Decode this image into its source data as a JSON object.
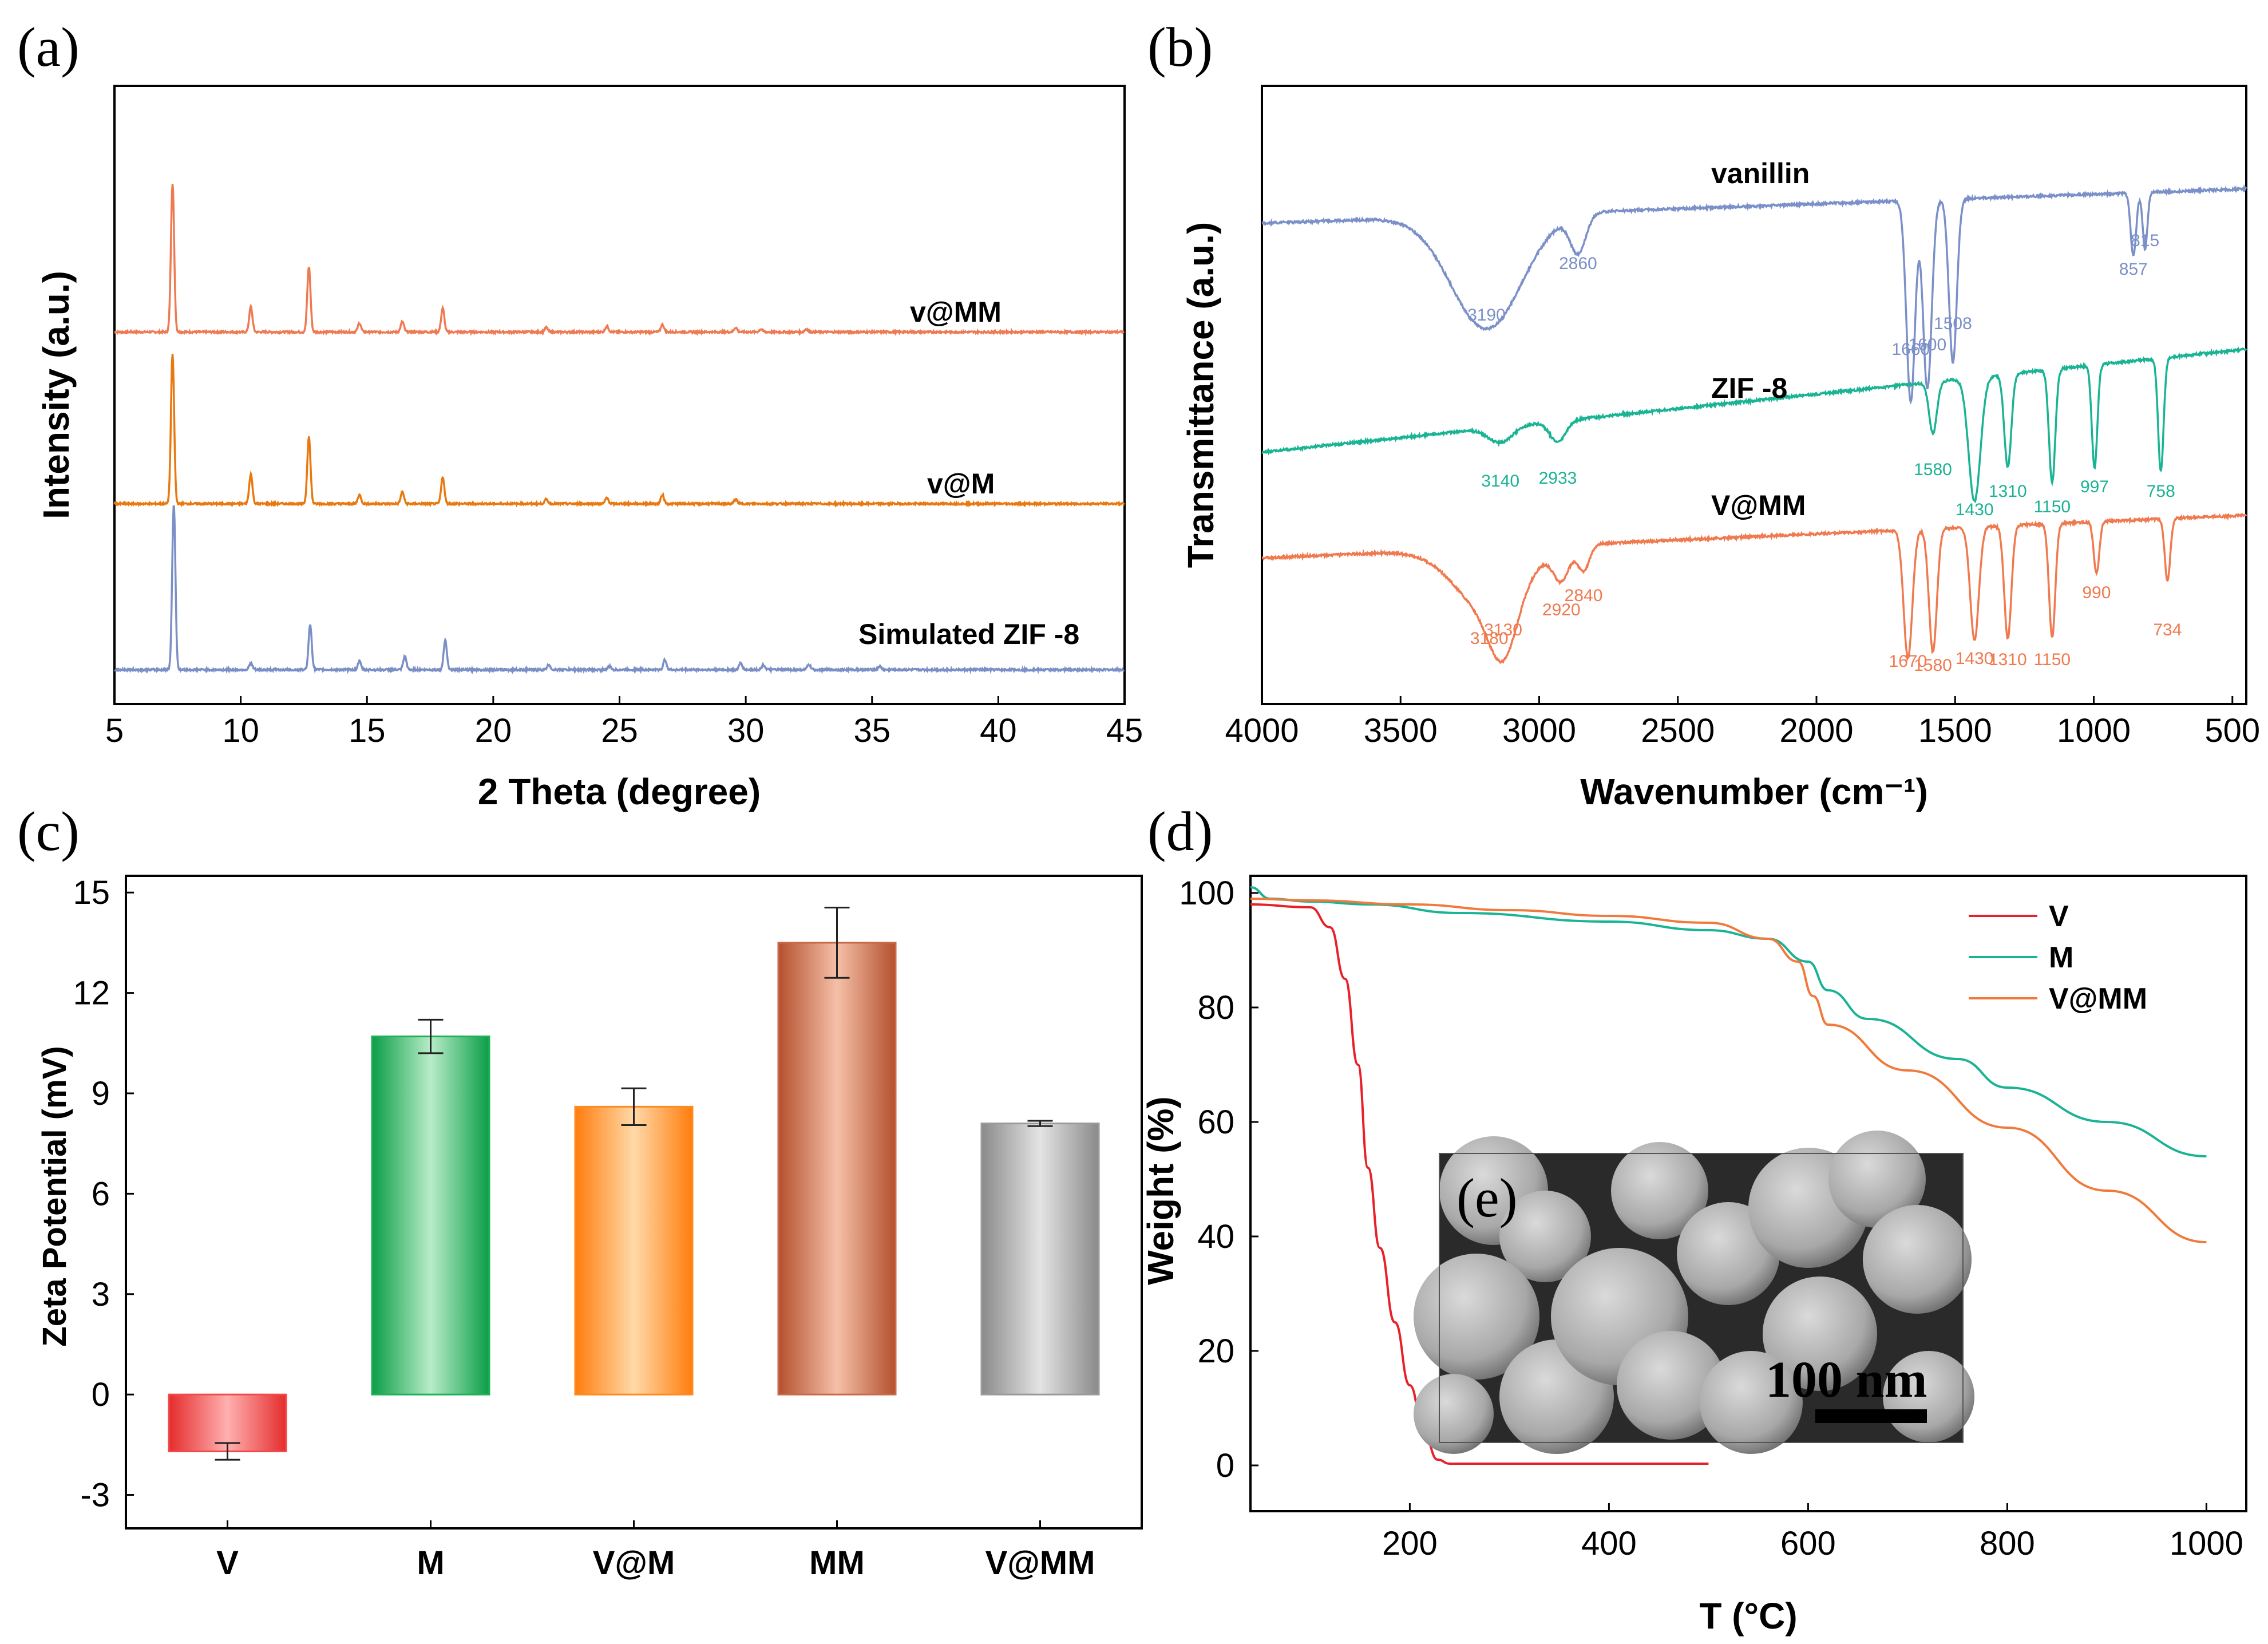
{
  "chart_data": [
    {
      "panel": "(a)",
      "type": "line",
      "xlabel": "2 Theta (degree)",
      "ylabel": "Intensity (a.u.)",
      "xlim": [
        5,
        45
      ],
      "xticks": [
        5,
        10,
        15,
        20,
        25,
        30,
        35,
        40,
        45
      ],
      "series": [
        {
          "name": "v@MM",
          "color": "#ee7a52",
          "peaks": [
            [
              7.3,
              100
            ],
            [
              10.4,
              17
            ],
            [
              12.7,
              44
            ],
            [
              14.7,
              6
            ],
            [
              16.4,
              7
            ],
            [
              18.0,
              16
            ],
            [
              22.1,
              3
            ],
            [
              24.5,
              4
            ],
            [
              26.7,
              5
            ],
            [
              29.6,
              3
            ],
            [
              30.6,
              2
            ],
            [
              32.4,
              2
            ]
          ]
        },
        {
          "name": "v@M",
          "color": "#e9780f",
          "peaks": [
            [
              7.3,
              100
            ],
            [
              10.4,
              20
            ],
            [
              12.7,
              45
            ],
            [
              14.7,
              6
            ],
            [
              16.4,
              8
            ],
            [
              18.0,
              18
            ],
            [
              22.1,
              3
            ],
            [
              24.5,
              4
            ],
            [
              26.7,
              6
            ],
            [
              29.6,
              3
            ]
          ]
        },
        {
          "name": "Simulated ZIF -8",
          "color": "#7b8fc6",
          "peaks": [
            [
              7.35,
              100
            ],
            [
              10.4,
              4
            ],
            [
              12.75,
              27
            ],
            [
              14.7,
              5
            ],
            [
              16.5,
              8
            ],
            [
              18.1,
              18
            ],
            [
              22.2,
              3
            ],
            [
              24.6,
              2
            ],
            [
              26.8,
              6
            ],
            [
              29.8,
              4
            ],
            [
              30.7,
              3
            ],
            [
              32.5,
              3
            ],
            [
              35.3,
              2
            ]
          ]
        }
      ]
    },
    {
      "panel": "(b)",
      "type": "line",
      "xlabel": "Wavenumber (cm⁻¹)",
      "ylabel": "Transmittance (a.u.)",
      "xlim": [
        4000,
        450
      ],
      "xticks": [
        4000,
        3500,
        3000,
        2500,
        2000,
        1500,
        1000,
        500
      ],
      "series": [
        {
          "name": "vanillin",
          "color": "#7b90c8",
          "bands": [
            {
              "wn": 3190,
              "label": "3190",
              "depth": 18,
              "width": 180
            },
            {
              "wn": 2860,
              "label": "2860",
              "depth": 6,
              "width": 40
            },
            {
              "wn": 1660,
              "label": "1660",
              "depth": 32,
              "width": 22
            },
            {
              "wn": 1600,
              "label": "1600",
              "depth": 30,
              "width": 22
            },
            {
              "wn": 1508,
              "label": "1508",
              "depth": 26,
              "width": 20
            },
            {
              "wn": 857,
              "label": "857",
              "depth": 10,
              "width": 14
            },
            {
              "wn": 815,
              "label": "815",
              "depth": 9,
              "width": 12
            }
          ]
        },
        {
          "name": "ZIF -8",
          "color": "#1ab394",
          "bands": [
            {
              "wn": 3140,
              "label": "3140",
              "depth": 3,
              "width": 60
            },
            {
              "wn": 2933,
              "label": "2933",
              "depth": 4,
              "width": 40
            },
            {
              "wn": 1580,
              "label": "1580",
              "depth": 10,
              "width": 20
            },
            {
              "wn": 1430,
              "label": "1430",
              "depth": 24,
              "width": 30
            },
            {
              "wn": 1310,
              "label": "1310",
              "depth": 18,
              "width": 18
            },
            {
              "wn": 1150,
              "label": "1150",
              "depth": 22,
              "width": 16
            },
            {
              "wn": 997,
              "label": "997",
              "depth": 20,
              "width": 14
            },
            {
              "wn": 758,
              "label": "758",
              "depth": 22,
              "width": 14
            }
          ]
        },
        {
          "name": "V@MM",
          "color": "#f07a4f",
          "bands": [
            {
              "wn": 3180,
              "label": "3180",
              "depth": 12,
              "width": 170
            },
            {
              "wn": 3130,
              "label": "3130",
              "depth": 11,
              "width": 70
            },
            {
              "wn": 2920,
              "label": "2920",
              "depth": 6,
              "width": 40
            },
            {
              "wn": 2840,
              "label": "2840",
              "depth": 5,
              "width": 30
            },
            {
              "wn": 1670,
              "label": "1670",
              "depth": 25,
              "width": 22
            },
            {
              "wn": 1580,
              "label": "1580",
              "depth": 24,
              "width": 20
            },
            {
              "wn": 1430,
              "label": "1430",
              "depth": 22,
              "width": 22
            },
            {
              "wn": 1310,
              "label": "1310",
              "depth": 22,
              "width": 18
            },
            {
              "wn": 1150,
              "label": "1150",
              "depth": 22,
              "width": 16
            },
            {
              "wn": 990,
              "label": "990",
              "depth": 10,
              "width": 14
            },
            {
              "wn": 734,
              "label": "734",
              "depth": 12,
              "width": 14
            }
          ]
        }
      ]
    },
    {
      "panel": "(c)",
      "type": "bar",
      "ylabel": "Zeta Potential (mV)",
      "ylim": [
        -4,
        15.5
      ],
      "yticks": [
        -3,
        0,
        3,
        6,
        9,
        12,
        15
      ],
      "categories": [
        "V",
        "M",
        "V@M",
        "MM",
        "V@MM"
      ],
      "values": [
        -1.7,
        10.7,
        8.6,
        13.5,
        8.1
      ],
      "errors": [
        0.25,
        0.5,
        0.55,
        1.05,
        0.08
      ],
      "colors": [
        "#f24a4a",
        "#1fb05a",
        "#ff8a1f",
        "#c86a4a",
        "#9a9a9a"
      ]
    },
    {
      "panel": "(d)",
      "type": "line",
      "xlabel": "T (°C)",
      "ylabel": "Weight (%)",
      "xlim": [
        40,
        1040
      ],
      "ylim": [
        -8,
        103
      ],
      "xticks": [
        200,
        400,
        600,
        800,
        1000
      ],
      "yticks": [
        0,
        20,
        40,
        60,
        80,
        100
      ],
      "series": [
        {
          "name": "V",
          "color": "#e8202a",
          "points": [
            [
              40,
              98
            ],
            [
              100,
              97.5
            ],
            [
              120,
              94
            ],
            [
              135,
              85
            ],
            [
              148,
              70
            ],
            [
              158,
              52
            ],
            [
              170,
              38
            ],
            [
              185,
              25
            ],
            [
              200,
              14
            ],
            [
              215,
              5
            ],
            [
              228,
              1
            ],
            [
              240,
              0.3
            ],
            [
              300,
              0.3
            ],
            [
              500,
              0.3
            ]
          ]
        },
        {
          "name": "M",
          "color": "#1ab394",
          "points": [
            [
              40,
              101
            ],
            [
              60,
              99
            ],
            [
              100,
              98.5
            ],
            [
              160,
              98
            ],
            [
              250,
              96.5
            ],
            [
              400,
              95
            ],
            [
              500,
              93.5
            ],
            [
              560,
              92
            ],
            [
              600,
              88
            ],
            [
              620,
              83
            ],
            [
              660,
              78
            ],
            [
              750,
              71
            ],
            [
              800,
              66
            ],
            [
              900,
              60
            ],
            [
              1000,
              54
            ]
          ]
        },
        {
          "name": "V@MM",
          "color": "#f07a3c",
          "points": [
            [
              40,
              99
            ],
            [
              100,
              98.7
            ],
            [
              200,
              98
            ],
            [
              300,
              97
            ],
            [
              400,
              96
            ],
            [
              500,
              94.8
            ],
            [
              560,
              92
            ],
            [
              590,
              88
            ],
            [
              605,
              82
            ],
            [
              620,
              77
            ],
            [
              700,
              69
            ],
            [
              800,
              59
            ],
            [
              900,
              48
            ],
            [
              1000,
              39
            ]
          ]
        }
      ]
    }
  ],
  "inset": {
    "label": "(e)",
    "scalebar": "100 nm"
  }
}
